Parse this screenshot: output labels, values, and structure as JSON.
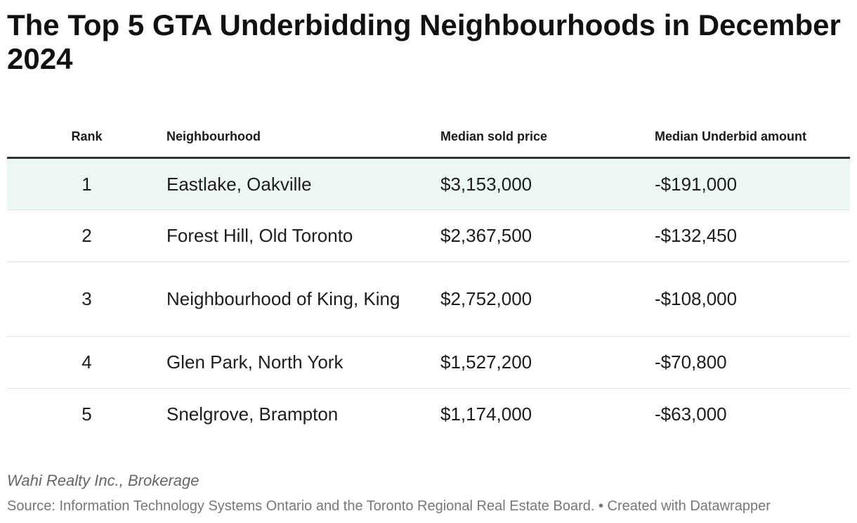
{
  "title": "The Top 5 GTA Underbidding Neighbourhoods in December 2024",
  "chart_data": {
    "type": "table",
    "columns": [
      "Rank",
      "Neighbourhood",
      "Median sold price",
      "Median Underbid amount"
    ],
    "rows": [
      {
        "rank": "1",
        "neighbourhood": "Eastlake, Oakville",
        "median_sold_price": "$3,153,000",
        "median_underbid": "-$191,000"
      },
      {
        "rank": "2",
        "neighbourhood": "Forest Hill, Old Toronto",
        "median_sold_price": "$2,367,500",
        "median_underbid": "-$132,450"
      },
      {
        "rank": "3",
        "neighbourhood": "Neighbourhood of King, King",
        "median_sold_price": "$2,752,000",
        "median_underbid": "-$108,000"
      },
      {
        "rank": "4",
        "neighbourhood": "Glen Park, North York",
        "median_sold_price": "$1,527,200",
        "median_underbid": "-$70,800"
      },
      {
        "rank": "5",
        "neighbourhood": "Snelgrove, Brampton",
        "median_sold_price": "$1,174,000",
        "median_underbid": "-$63,000"
      }
    ],
    "highlight_row_color": "#eef8f2",
    "header_rule_color": "#333333"
  },
  "byline": "Wahi Realty Inc., Brokerage",
  "source": "Source: Information Technology Systems Ontario and the Toronto Regional Real Estate Board. • Created with Datawrapper"
}
